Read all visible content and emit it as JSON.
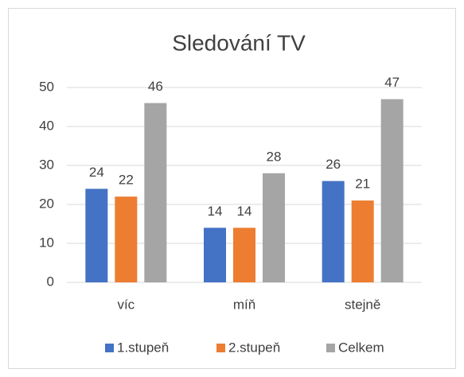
{
  "chart_data": {
    "type": "bar",
    "title": "Sledování TV",
    "categories": [
      "víc",
      "míň",
      "stejně"
    ],
    "series": [
      {
        "name": "1.stupeň",
        "color": "#4472c4",
        "values": [
          24,
          14,
          26
        ]
      },
      {
        "name": "2.stupeň",
        "color": "#ed7d31",
        "values": [
          22,
          14,
          21
        ]
      },
      {
        "name": "Celkem",
        "color": "#a5a5a5",
        "values": [
          46,
          28,
          47
        ]
      }
    ],
    "ylim": [
      0,
      50
    ],
    "yticks": [
      0,
      10,
      20,
      30,
      40,
      50
    ],
    "grid": true,
    "legend": "bottom"
  }
}
